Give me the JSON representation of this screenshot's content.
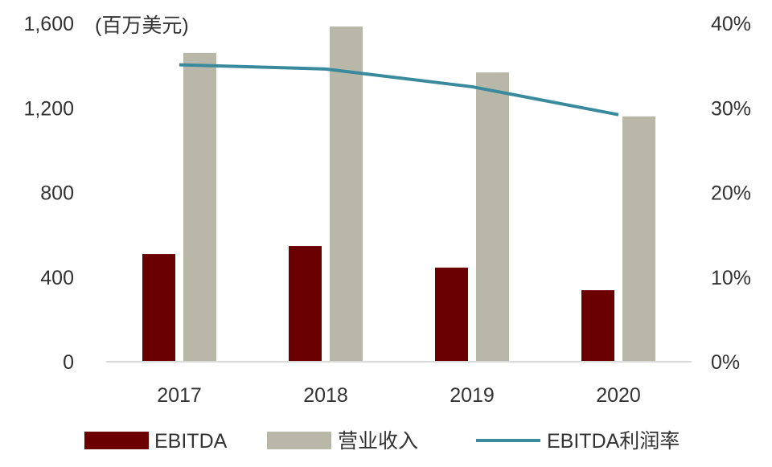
{
  "chart_data": {
    "type": "bar",
    "unit_label": "(百万美元)",
    "categories": [
      "2017",
      "2018",
      "2019",
      "2020"
    ],
    "series": [
      {
        "name": "EBITDA",
        "type": "bar",
        "axis": "left",
        "color": "#6b0000",
        "values": [
          509,
          547,
          445,
          338
        ]
      },
      {
        "name": "营业收入",
        "type": "bar",
        "axis": "left",
        "color": "#b9b8a8",
        "values": [
          1460,
          1585,
          1368,
          1160
        ]
      },
      {
        "name": "EBITDA利润率",
        "type": "line",
        "axis": "right",
        "color": "#3a8a9e",
        "values": [
          35.1,
          34.6,
          32.5,
          29.2
        ]
      }
    ],
    "left_axis": {
      "ylim": [
        0,
        1600
      ],
      "ticks": [
        0,
        400,
        800,
        1200,
        1600
      ],
      "tick_labels": [
        "0",
        "400",
        "800",
        "1,200",
        "1,600"
      ]
    },
    "right_axis": {
      "ylim": [
        0,
        40
      ],
      "ticks": [
        0,
        10,
        20,
        30,
        40
      ],
      "tick_labels": [
        "0%",
        "10%",
        "20%",
        "30%",
        "40%"
      ]
    },
    "grid": false,
    "legend": "bottom"
  }
}
